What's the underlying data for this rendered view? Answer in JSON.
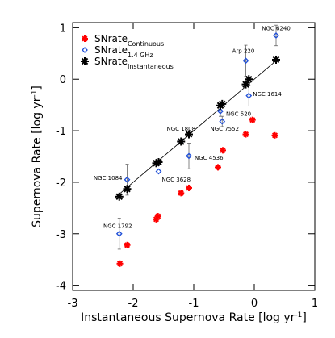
{
  "chart_data": {
    "type": "scatter",
    "xlabel": {
      "text": "Instantaneous Supernova Rate [log yr",
      "sup": "-1",
      "end": "]"
    },
    "ylabel": {
      "text": "Supernova Rate [log yr",
      "sup": "-1",
      "end": "]"
    },
    "xlim": [
      -3,
      1
    ],
    "ylim": [
      -4.1,
      1.1
    ],
    "xticks": [
      -3,
      -2,
      -1,
      0,
      1
    ],
    "yticks": [
      -4,
      -3,
      -2,
      -1,
      0,
      1
    ],
    "legend": "upper left",
    "reference_line": {
      "x": [
        -2.3,
        0.4
      ],
      "y": [
        -2.3,
        0.4
      ],
      "color": "#000000"
    },
    "series": [
      {
        "name": "SNrate",
        "subscript": "Continuous",
        "marker": "star",
        "color": "#ff0000",
        "x": [
          -2.22,
          -2.1,
          -1.62,
          -1.59,
          -1.21,
          -1.08,
          -0.6,
          -0.52,
          -0.14,
          -0.03,
          0.34
        ],
        "values": [
          -3.58,
          -3.22,
          -2.72,
          -2.66,
          -2.21,
          -2.11,
          -1.71,
          -1.38,
          -1.07,
          -0.79,
          -1.09
        ]
      },
      {
        "name": "SNrate",
        "subscript": "1.4 GHz",
        "marker": "diamond",
        "color": "#1f4fd8",
        "x": [
          -2.23,
          -2.1,
          -1.58,
          -1.21,
          -1.08,
          -0.56,
          -0.53,
          -0.14,
          -0.09,
          0.36
        ],
        "values": [
          -3.0,
          -1.95,
          -1.79,
          -1.21,
          -1.49,
          -0.62,
          -0.82,
          0.36,
          -0.32,
          0.85
        ],
        "errors": [
          0.3,
          0.3,
          null,
          null,
          0.25,
          0.1,
          0.1,
          0.3,
          0.2,
          0.2
        ],
        "point_labels": [
          "NGC 1792",
          "NGC 1084",
          "NGC 3628",
          "NGC 1808",
          "NGC 4536",
          "NGC 520",
          "NGC 7552",
          "Arp 220",
          "NGC 1614",
          "NGC 6240"
        ]
      },
      {
        "name": "SNrate",
        "subscript": "Instantaneous",
        "marker": "star",
        "color": "#000000",
        "x": [
          -2.23,
          -2.1,
          -1.62,
          -1.58,
          -1.21,
          -1.08,
          -0.56,
          -0.53,
          -0.14,
          -0.09,
          0.36
        ],
        "values": [
          -2.28,
          -2.13,
          -1.63,
          -1.61,
          -1.21,
          -1.07,
          -0.51,
          -0.48,
          -0.1,
          0.0,
          0.38
        ]
      }
    ]
  }
}
